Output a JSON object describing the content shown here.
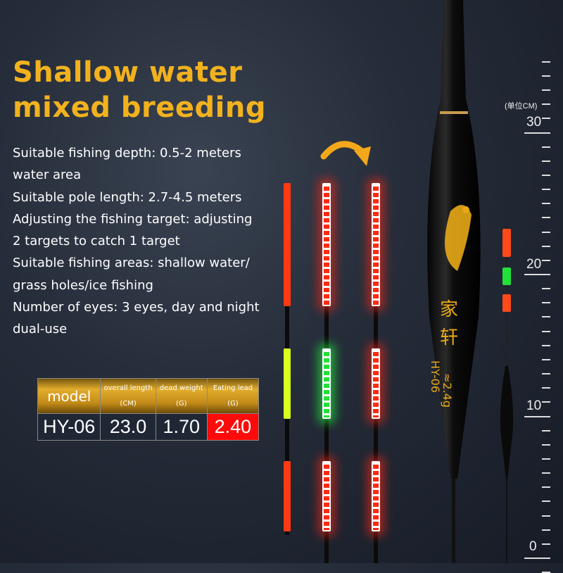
{
  "title": "Shallow water mixed breeding",
  "specs": [
    "Suitable fishing depth: 0.5-2 meters",
    "water area",
    "Suitable pole length: 2.7-4.5 meters",
    "Adjusting the fishing target: adjusting",
    "2 targets to catch 1 target",
    "Suitable fishing areas: shallow water/",
    "grass holes/ice fishing",
    "Number of eyes: 3 eyes, day and night",
    "dual-use"
  ],
  "table": {
    "headers": [
      {
        "l1": "model"
      },
      {
        "l1": "overall length",
        "l2": "(CM)"
      },
      {
        "l1": "dead weight",
        "l2": "(G)"
      },
      {
        "l1": "Eating lead",
        "l2": "(G)"
      }
    ],
    "row": [
      "HY-06",
      "23.0",
      "1.70",
      "2.40"
    ],
    "highlight_color": "#ff0a0a"
  },
  "float": {
    "brand": "家轩",
    "weight": "≈2.4g",
    "model": "HY-06"
  },
  "ruler": {
    "unit": "(单位CM)",
    "labels": [
      "30",
      "20",
      "10",
      "0"
    ]
  },
  "colors": {
    "title": "#f2b21e",
    "background": "#262d3a"
  }
}
